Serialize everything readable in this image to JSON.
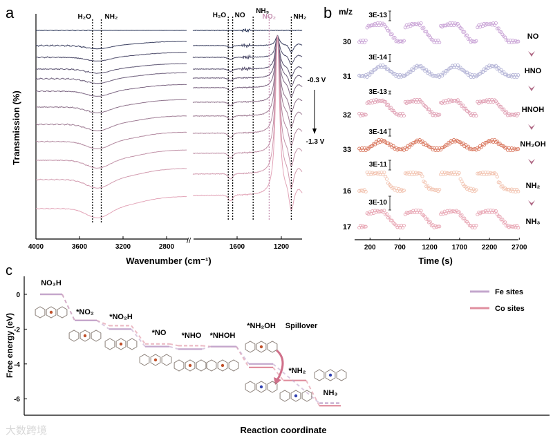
{
  "figure": {
    "panel_labels": [
      "a",
      "b",
      "c"
    ],
    "watermark": "大数跨境"
  },
  "chart_data": [
    {
      "type": "line",
      "id": "a",
      "title": "",
      "xlabel": "Wavenumber (cm⁻¹)",
      "ylabel": "Transmission (%)",
      "x_ticks": [
        "4000",
        "3600",
        "3200",
        "2800",
        "1600",
        "1200"
      ],
      "x_segments": [
        [
          4000,
          2610
        ],
        [
          2000,
          1000
        ]
      ],
      "band_labels_left": [
        {
          "label": "H₂O",
          "x": 3480
        },
        {
          "label": "NH₂",
          "x": 3400
        }
      ],
      "band_labels_right": [
        {
          "label": "H₂O",
          "x": 1680
        },
        {
          "label": "NO",
          "x": 1640
        },
        {
          "label": "NH₃",
          "x": 1455
        },
        {
          "label": "NO₂",
          "x": 1310,
          "color": "#c58fb0"
        },
        {
          "label": "NH₂",
          "x": 1110
        }
      ],
      "potential_start": "-0.3 V",
      "potential_end": "-1.3 V",
      "series_count": 12,
      "series_intensity": [
        0,
        0.35,
        0.4,
        0.45,
        0.5,
        0.55,
        0.62,
        0.7,
        0.78,
        0.85,
        0.92,
        1.0
      ],
      "color_start": "#2a3658",
      "color_end": "#e3a5b8"
    },
    {
      "type": "scatter",
      "id": "b",
      "xlabel": "Time (s)",
      "ylabel": "m/z",
      "x_ticks": [
        "200",
        "700",
        "1200",
        "1700",
        "2200",
        "2700"
      ],
      "xlim": [
        0,
        2700
      ],
      "pulse_on": [
        150,
        780,
        1380,
        1990
      ],
      "pulse_off": [
        450,
        1060,
        1690,
        2310
      ],
      "series": [
        {
          "mz": "30",
          "species": "NO",
          "scale": "3E-13",
          "color": "#c9a3d6",
          "shape": "square"
        },
        {
          "mz": "31",
          "species": "HNO",
          "scale": "3E-14",
          "color": "#b3b3d6",
          "shape": "ramp"
        },
        {
          "mz": "32",
          "species": "HNOH",
          "scale": "3E-13",
          "color": "#e0a0b4",
          "shape": "square"
        },
        {
          "mz": "33",
          "species": "NH₂OH",
          "scale": "3E-14",
          "color": "#d9775e",
          "shape": "ramp"
        },
        {
          "mz": "16",
          "species": "NH₂",
          "scale": "3E-11",
          "color": "#f2c3b0",
          "shape": "decay"
        },
        {
          "mz": "17",
          "species": "NH₃",
          "scale": "3E-10",
          "color": "#e8a5b3",
          "shape": "square"
        }
      ]
    },
    {
      "type": "line",
      "id": "c",
      "xlabel": "Reaction coordinate",
      "ylabel": "Free energy (eV)",
      "y_ticks": [
        "0",
        "-2",
        "-4",
        "-6"
      ],
      "ylim": [
        -7,
        1
      ],
      "legend": [
        {
          "label": "Fe sites",
          "color": "#c3a6cc"
        },
        {
          "label": "Co sites",
          "color": "#e08f9f"
        }
      ],
      "legend_position": "top-right",
      "steps": [
        {
          "label": "NO₃H",
          "fe": 0.0,
          "co": 0.0
        },
        {
          "label": "*NO₂",
          "fe": -1.5,
          "co": -1.5
        },
        {
          "label": "*NO₂H",
          "fe": -2.0,
          "co": -1.8
        },
        {
          "label": "*NO",
          "fe": -3.0,
          "co": -2.85
        },
        {
          "label": "*NHO",
          "fe": -3.15,
          "co": -2.95
        },
        {
          "label": "*NHOH",
          "fe": -3.0,
          "co": -3.0
        },
        {
          "label": "*NH₂OH",
          "fe": -4.0,
          "co": -4.2
        },
        {
          "label": "*NH₂",
          "fe": null,
          "co": -4.95
        },
        {
          "label": "NH₃",
          "fe": -6.25,
          "co": -6.4
        }
      ],
      "annotation": "Spillover"
    }
  ]
}
